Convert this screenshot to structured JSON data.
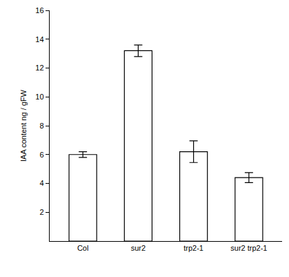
{
  "chart_data": {
    "type": "bar",
    "y_label": "IAA content ng / gFW",
    "categories": [
      "Col",
      "sur2",
      "trp2-1",
      "sur2 trp2-1"
    ],
    "values": [
      6.0,
      13.2,
      6.2,
      4.4
    ],
    "errors": [
      0.2,
      0.4,
      0.75,
      0.35
    ],
    "color": "#ffffff",
    "ylim": [
      0,
      16
    ],
    "yticks": [
      2,
      4,
      6,
      8,
      10,
      12,
      14,
      16
    ],
    "grid": false
  }
}
